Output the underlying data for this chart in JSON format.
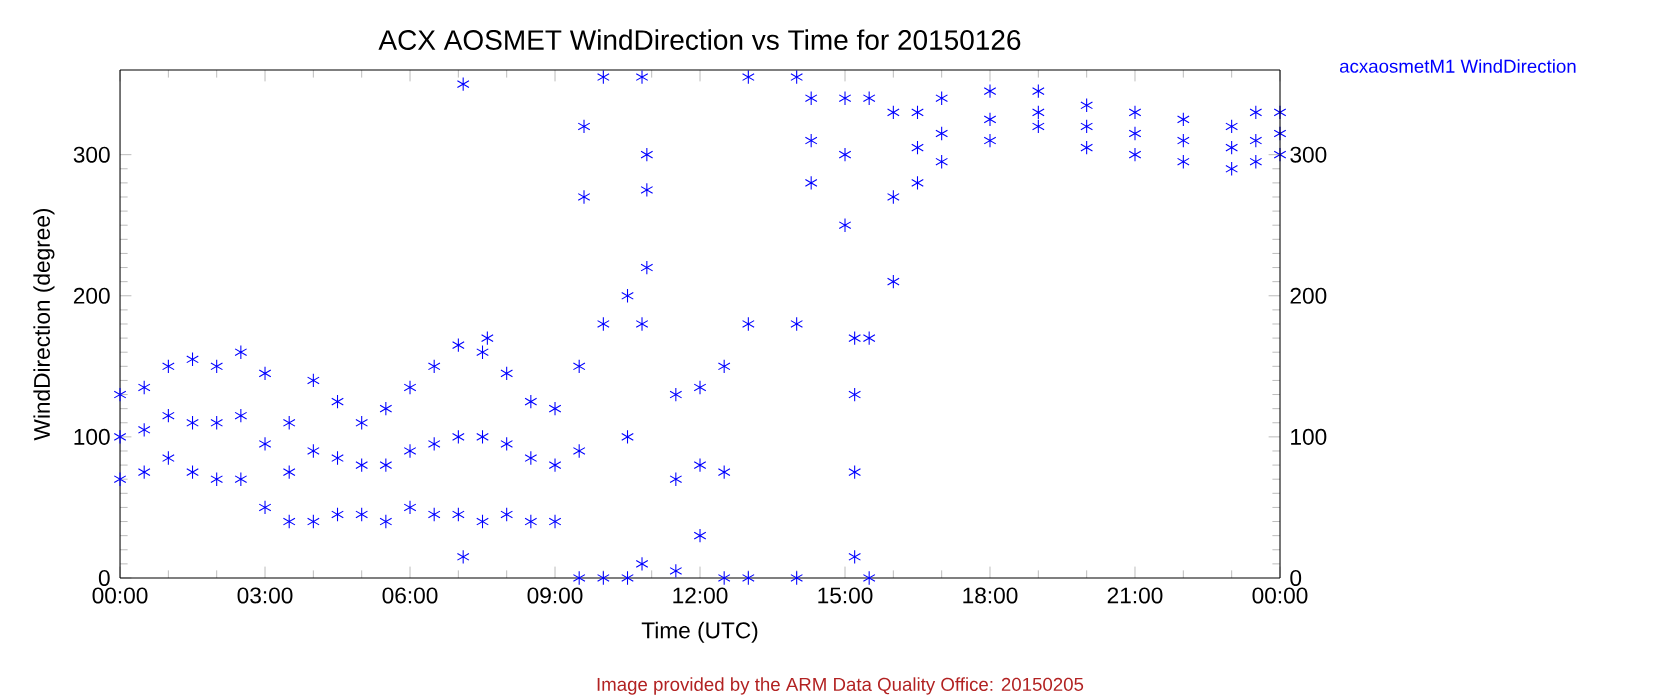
{
  "chart_data": {
    "type": "scatter",
    "title": "ACX AOSMET WindDirection vs Time for 20150126",
    "xlabel": "Time (UTC)",
    "ylabel": "WindDirection (degree)",
    "xlim": [
      0,
      24
    ],
    "xticks": [
      {
        "value": 0,
        "label": "00:00"
      },
      {
        "value": 3,
        "label": "03:00"
      },
      {
        "value": 6,
        "label": "06:00"
      },
      {
        "value": 9,
        "label": "09:00"
      },
      {
        "value": 12,
        "label": "12:00"
      },
      {
        "value": 15,
        "label": "15:00"
      },
      {
        "value": 18,
        "label": "18:00"
      },
      {
        "value": 21,
        "label": "21:00"
      },
      {
        "value": 24,
        "label": "00:00"
      }
    ],
    "ylim": [
      0,
      360
    ],
    "yticks": [
      0,
      100,
      200,
      300
    ],
    "y2lim": [
      0,
      360
    ],
    "y2ticks": [
      0,
      100,
      200,
      300
    ],
    "marker": "cross",
    "legend": "top right",
    "grid": false,
    "annotations": [
      "Image provided by the ARM Data Quality Office: 20150205"
    ],
    "series": [
      {
        "name": "acxaosmetM1 WindDirection",
        "color": "#0000ff",
        "x": [
          0,
          0,
          0,
          0.5,
          0.5,
          0.5,
          1,
          1,
          1,
          1.5,
          1.5,
          1.5,
          2,
          2,
          2,
          2.5,
          2.5,
          2.5,
          3,
          3,
          3,
          3.5,
          3.5,
          3.5,
          4,
          4,
          4,
          4.5,
          4.5,
          4.5,
          5,
          5,
          5,
          5.5,
          5.5,
          5.5,
          6,
          6,
          6,
          6.5,
          6.5,
          6.5,
          7,
          7,
          7,
          7.5,
          7.5,
          7.5,
          8,
          8,
          8,
          8.5,
          8.5,
          8.5,
          9,
          9,
          9,
          9.5,
          9.5,
          9.5,
          10,
          10,
          10,
          10.5,
          10.5,
          10.5,
          10.8,
          10.8,
          10.8,
          11.5,
          11.5,
          11.5,
          12,
          12,
          12,
          12.5,
          12.5,
          12.5,
          13,
          13,
          13,
          14,
          14,
          14,
          14.3,
          14.3,
          14.3,
          15,
          15,
          15,
          15.5,
          15.5,
          15.5,
          16,
          16,
          16,
          16.5,
          16.5,
          16.5,
          17,
          17,
          17,
          18,
          18,
          18,
          19,
          19,
          19,
          20,
          20,
          20,
          21,
          21,
          21,
          22,
          22,
          22,
          23,
          23,
          23,
          23.5,
          23.5,
          23.5,
          24,
          24,
          24,
          7.1,
          7.1,
          7.6,
          9.6,
          9.6,
          10.9,
          10.9,
          10.9,
          15.2,
          15.2,
          15.2,
          15.2
        ],
        "values": [
          130,
          100,
          70,
          135,
          105,
          75,
          150,
          115,
          85,
          155,
          110,
          75,
          150,
          110,
          70,
          160,
          115,
          70,
          145,
          95,
          50,
          110,
          75,
          40,
          140,
          90,
          40,
          125,
          85,
          45,
          110,
          80,
          45,
          120,
          80,
          40,
          135,
          90,
          50,
          150,
          95,
          45,
          165,
          100,
          45,
          160,
          100,
          40,
          145,
          95,
          45,
          125,
          85,
          40,
          120,
          80,
          40,
          150,
          90,
          0,
          355,
          180,
          0,
          200,
          100,
          0,
          355,
          180,
          10,
          130,
          70,
          5,
          135,
          80,
          30,
          150,
          75,
          0,
          355,
          180,
          0,
          355,
          180,
          0,
          340,
          310,
          280,
          340,
          300,
          250,
          340,
          170,
          0,
          330,
          270,
          210,
          330,
          305,
          280,
          340,
          315,
          295,
          345,
          325,
          310,
          345,
          330,
          320,
          335,
          320,
          305,
          330,
          315,
          300,
          325,
          310,
          295,
          320,
          305,
          290,
          330,
          310,
          295,
          330,
          315,
          300,
          15,
          350,
          170,
          320,
          270,
          300,
          275,
          220,
          170,
          130,
          75,
          15
        ]
      }
    ]
  }
}
